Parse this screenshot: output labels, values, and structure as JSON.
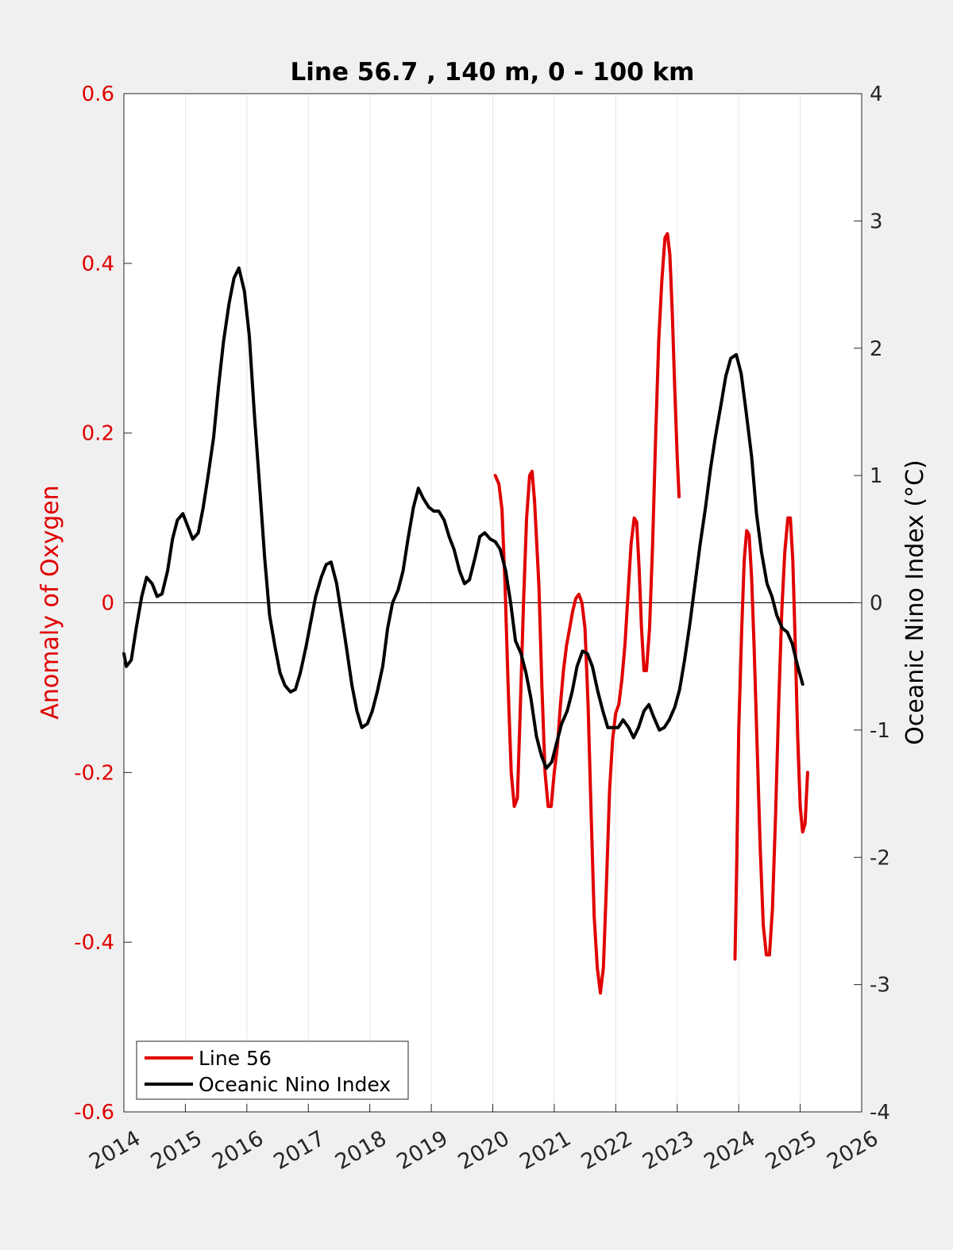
{
  "chart_data": {
    "type": "line",
    "title": "Line 56.7 , 140 m, 0 - 100 km",
    "xlabel": "",
    "ylabel": "Anomaly of Oxygen",
    "y2label": "Oceanic Nino Index (°C)",
    "xlim": [
      2014,
      2026
    ],
    "ylim": [
      -0.6,
      0.6
    ],
    "y2lim": [
      -4,
      4
    ],
    "x_ticks": [
      2014,
      2015,
      2016,
      2017,
      2018,
      2019,
      2020,
      2021,
      2022,
      2023,
      2024,
      2025,
      2026
    ],
    "x_tick_labels": [
      "2014",
      "2015",
      "2016",
      "2017",
      "2018",
      "2019",
      "2020",
      "2021",
      "2022",
      "2023",
      "2024",
      "2025",
      "2026"
    ],
    "y_ticks": [
      -0.6,
      -0.4,
      -0.2,
      0,
      0.2,
      0.4,
      0.6
    ],
    "y_tick_labels": [
      "-0.6",
      "-0.4",
      "-0.2",
      "0",
      "0.2",
      "0.4",
      "0.6"
    ],
    "y2_ticks": [
      -4,
      -3,
      -2,
      -1,
      0,
      1,
      2,
      3,
      4
    ],
    "y2_tick_labels": [
      "-4",
      "-3",
      "-2",
      "-1",
      "0",
      "1",
      "2",
      "3",
      "4"
    ],
    "grid": "vertical",
    "legend_position": "bottom-left",
    "colors": {
      "left_axis": "#e00000",
      "line56": "#e00000",
      "oni": "#000000",
      "background": "#f0f0f0",
      "plot_area": "#ffffff",
      "grid": "#e6e6e6"
    },
    "series": [
      {
        "name": "Line 56",
        "axis": "left",
        "color": "#e00000",
        "segments": [
          [
            [
              2020.04,
              0.15
            ],
            [
              2020.1,
              0.14
            ],
            [
              2020.15,
              0.11
            ],
            [
              2020.2,
              0.02
            ],
            [
              2020.25,
              -0.1
            ],
            [
              2020.3,
              -0.2
            ],
            [
              2020.35,
              -0.24
            ],
            [
              2020.4,
              -0.23
            ],
            [
              2020.45,
              -0.12
            ],
            [
              2020.5,
              0.0
            ],
            [
              2020.55,
              0.1
            ],
            [
              2020.6,
              0.15
            ],
            [
              2020.64,
              0.155
            ],
            [
              2020.68,
              0.12
            ],
            [
              2020.75,
              0.02
            ],
            [
              2020.8,
              -0.1
            ],
            [
              2020.85,
              -0.2
            ],
            [
              2020.9,
              -0.24
            ],
            [
              2020.95,
              -0.24
            ],
            [
              2021.0,
              -0.2
            ],
            [
              2021.05,
              -0.17
            ],
            [
              2021.1,
              -0.12
            ],
            [
              2021.15,
              -0.08
            ],
            [
              2021.2,
              -0.05
            ],
            [
              2021.25,
              -0.03
            ],
            [
              2021.3,
              -0.01
            ],
            [
              2021.35,
              0.005
            ],
            [
              2021.4,
              0.01
            ],
            [
              2021.45,
              0.0
            ],
            [
              2021.5,
              -0.03
            ],
            [
              2021.55,
              -0.12
            ],
            [
              2021.6,
              -0.25
            ],
            [
              2021.65,
              -0.37
            ],
            [
              2021.7,
              -0.43
            ],
            [
              2021.75,
              -0.46
            ],
            [
              2021.8,
              -0.43
            ],
            [
              2021.85,
              -0.33
            ],
            [
              2021.9,
              -0.22
            ],
            [
              2021.95,
              -0.16
            ],
            [
              2022.0,
              -0.13
            ],
            [
              2022.05,
              -0.12
            ],
            [
              2022.1,
              -0.09
            ],
            [
              2022.15,
              -0.05
            ],
            [
              2022.2,
              0.01
            ],
            [
              2022.25,
              0.07
            ],
            [
              2022.3,
              0.1
            ],
            [
              2022.34,
              0.095
            ],
            [
              2022.38,
              0.04
            ],
            [
              2022.42,
              -0.03
            ],
            [
              2022.46,
              -0.08
            ],
            [
              2022.5,
              -0.08
            ],
            [
              2022.55,
              -0.03
            ],
            [
              2022.6,
              0.07
            ],
            [
              2022.65,
              0.2
            ],
            [
              2022.7,
              0.31
            ],
            [
              2022.75,
              0.38
            ],
            [
              2022.8,
              0.43
            ],
            [
              2022.84,
              0.435
            ],
            [
              2022.88,
              0.41
            ],
            [
              2022.92,
              0.34
            ],
            [
              2022.96,
              0.25
            ],
            [
              2023.0,
              0.17
            ],
            [
              2023.03,
              0.125
            ]
          ],
          [
            [
              2023.94,
              -0.42
            ],
            [
              2023.97,
              -0.3
            ],
            [
              2024.0,
              -0.15
            ],
            [
              2024.05,
              -0.03
            ],
            [
              2024.09,
              0.05
            ],
            [
              2024.13,
              0.085
            ],
            [
              2024.17,
              0.08
            ],
            [
              2024.21,
              0.03
            ],
            [
              2024.25,
              -0.05
            ],
            [
              2024.3,
              -0.17
            ],
            [
              2024.35,
              -0.29
            ],
            [
              2024.4,
              -0.38
            ],
            [
              2024.45,
              -0.415
            ],
            [
              2024.5,
              -0.415
            ],
            [
              2024.55,
              -0.36
            ],
            [
              2024.6,
              -0.25
            ],
            [
              2024.65,
              -0.12
            ],
            [
              2024.7,
              -0.01
            ],
            [
              2024.75,
              0.06
            ],
            [
              2024.8,
              0.1
            ],
            [
              2024.84,
              0.1
            ],
            [
              2024.88,
              0.05
            ],
            [
              2024.92,
              -0.05
            ],
            [
              2024.96,
              -0.16
            ],
            [
              2025.0,
              -0.24
            ],
            [
              2025.04,
              -0.27
            ],
            [
              2025.08,
              -0.26
            ],
            [
              2025.12,
              -0.2
            ]
          ]
        ]
      },
      {
        "name": "Oceanic Nino Index",
        "axis": "right",
        "color": "#000000",
        "segments": [
          [
            [
              2014.0,
              -0.4
            ],
            [
              2014.04,
              -0.5
            ],
            [
              2014.12,
              -0.45
            ],
            [
              2014.2,
              -0.2
            ],
            [
              2014.29,
              0.05
            ],
            [
              2014.37,
              0.2
            ],
            [
              2014.46,
              0.15
            ],
            [
              2014.54,
              0.05
            ],
            [
              2014.62,
              0.07
            ],
            [
              2014.71,
              0.25
            ],
            [
              2014.79,
              0.5
            ],
            [
              2014.87,
              0.65
            ],
            [
              2014.96,
              0.7
            ],
            [
              2015.04,
              0.6
            ],
            [
              2015.12,
              0.5
            ],
            [
              2015.21,
              0.55
            ],
            [
              2015.29,
              0.75
            ],
            [
              2015.37,
              1.0
            ],
            [
              2015.46,
              1.3
            ],
            [
              2015.54,
              1.7
            ],
            [
              2015.62,
              2.05
            ],
            [
              2015.71,
              2.35
            ],
            [
              2015.79,
              2.55
            ],
            [
              2015.87,
              2.63
            ],
            [
              2015.96,
              2.45
            ],
            [
              2016.04,
              2.1
            ],
            [
              2016.12,
              1.5
            ],
            [
              2016.21,
              0.9
            ],
            [
              2016.29,
              0.35
            ],
            [
              2016.37,
              -0.1
            ],
            [
              2016.46,
              -0.35
            ],
            [
              2016.54,
              -0.55
            ],
            [
              2016.62,
              -0.65
            ],
            [
              2016.71,
              -0.7
            ],
            [
              2016.79,
              -0.68
            ],
            [
              2016.87,
              -0.55
            ],
            [
              2016.96,
              -0.35
            ],
            [
              2017.04,
              -0.15
            ],
            [
              2017.12,
              0.05
            ],
            [
              2017.21,
              0.2
            ],
            [
              2017.29,
              0.3
            ],
            [
              2017.37,
              0.32
            ],
            [
              2017.46,
              0.15
            ],
            [
              2017.54,
              -0.1
            ],
            [
              2017.62,
              -0.35
            ],
            [
              2017.71,
              -0.65
            ],
            [
              2017.79,
              -0.85
            ],
            [
              2017.87,
              -0.98
            ],
            [
              2017.96,
              -0.95
            ],
            [
              2018.04,
              -0.85
            ],
            [
              2018.12,
              -0.7
            ],
            [
              2018.21,
              -0.5
            ],
            [
              2018.29,
              -0.2
            ],
            [
              2018.37,
              0.0
            ],
            [
              2018.46,
              0.1
            ],
            [
              2018.54,
              0.25
            ],
            [
              2018.62,
              0.5
            ],
            [
              2018.71,
              0.75
            ],
            [
              2018.79,
              0.9
            ],
            [
              2018.87,
              0.82
            ],
            [
              2018.96,
              0.75
            ],
            [
              2019.04,
              0.72
            ],
            [
              2019.12,
              0.72
            ],
            [
              2019.21,
              0.65
            ],
            [
              2019.29,
              0.52
            ],
            [
              2019.37,
              0.42
            ],
            [
              2019.46,
              0.25
            ],
            [
              2019.54,
              0.15
            ],
            [
              2019.62,
              0.18
            ],
            [
              2019.71,
              0.35
            ],
            [
              2019.79,
              0.52
            ],
            [
              2019.87,
              0.55
            ],
            [
              2019.96,
              0.5
            ],
            [
              2020.04,
              0.48
            ],
            [
              2020.12,
              0.42
            ],
            [
              2020.21,
              0.25
            ],
            [
              2020.29,
              0.0
            ],
            [
              2020.37,
              -0.3
            ],
            [
              2020.46,
              -0.4
            ],
            [
              2020.54,
              -0.55
            ],
            [
              2020.62,
              -0.75
            ],
            [
              2020.71,
              -1.05
            ],
            [
              2020.79,
              -1.2
            ],
            [
              2020.87,
              -1.3
            ],
            [
              2020.96,
              -1.25
            ],
            [
              2021.04,
              -1.1
            ],
            [
              2021.12,
              -0.95
            ],
            [
              2021.21,
              -0.85
            ],
            [
              2021.29,
              -0.7
            ],
            [
              2021.37,
              -0.5
            ],
            [
              2021.46,
              -0.38
            ],
            [
              2021.54,
              -0.4
            ],
            [
              2021.62,
              -0.5
            ],
            [
              2021.71,
              -0.7
            ],
            [
              2021.79,
              -0.85
            ],
            [
              2021.87,
              -0.98
            ],
            [
              2021.96,
              -0.98
            ],
            [
              2022.04,
              -0.98
            ],
            [
              2022.12,
              -0.92
            ],
            [
              2022.21,
              -0.98
            ],
            [
              2022.29,
              -1.06
            ],
            [
              2022.37,
              -0.98
            ],
            [
              2022.46,
              -0.85
            ],
            [
              2022.54,
              -0.8
            ],
            [
              2022.62,
              -0.9
            ],
            [
              2022.71,
              -1.0
            ],
            [
              2022.79,
              -0.98
            ],
            [
              2022.87,
              -0.92
            ],
            [
              2022.96,
              -0.82
            ],
            [
              2023.04,
              -0.68
            ],
            [
              2023.12,
              -0.45
            ],
            [
              2023.21,
              -0.15
            ],
            [
              2023.29,
              0.15
            ],
            [
              2023.37,
              0.45
            ],
            [
              2023.46,
              0.75
            ],
            [
              2023.54,
              1.05
            ],
            [
              2023.62,
              1.3
            ],
            [
              2023.71,
              1.55
            ],
            [
              2023.79,
              1.78
            ],
            [
              2023.87,
              1.92
            ],
            [
              2023.96,
              1.95
            ],
            [
              2024.04,
              1.8
            ],
            [
              2024.12,
              1.5
            ],
            [
              2024.21,
              1.15
            ],
            [
              2024.29,
              0.7
            ],
            [
              2024.37,
              0.4
            ],
            [
              2024.46,
              0.15
            ],
            [
              2024.54,
              0.05
            ],
            [
              2024.62,
              -0.1
            ],
            [
              2024.71,
              -0.2
            ],
            [
              2024.79,
              -0.23
            ],
            [
              2024.87,
              -0.32
            ],
            [
              2024.96,
              -0.5
            ],
            [
              2025.04,
              -0.64
            ]
          ]
        ]
      }
    ]
  },
  "legend": {
    "items": [
      {
        "label": "Line 56",
        "color": "#e00000"
      },
      {
        "label": "Oceanic Nino Index",
        "color": "#000000"
      }
    ]
  }
}
